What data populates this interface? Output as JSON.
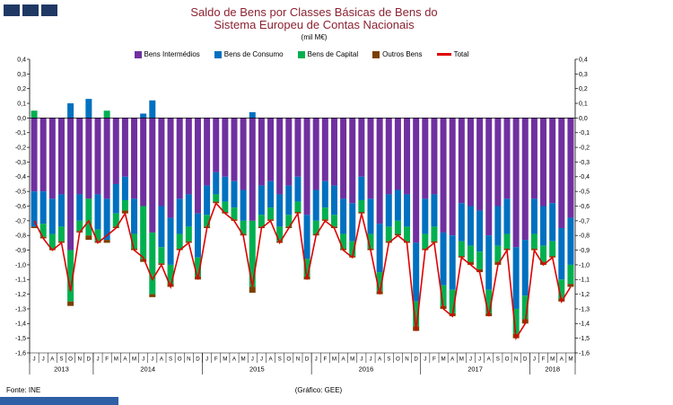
{
  "header": {
    "title_line1": "Saldo de Bens por Classes Básicas de Bens do",
    "title_line2": "Sistema Europeu de Contas Nacionais",
    "subtitle": "(mil M€)"
  },
  "footer": {
    "source": "Fonte: INE",
    "credit": "(Gráfico: GEE)"
  },
  "colors": {
    "title": "#8B2232",
    "deco_squares": "#1F3864",
    "bottom_bar": "#2F5FA5",
    "axis_text": "#000000",
    "background": "#FFFFFF"
  },
  "chart_data": {
    "type": "bar",
    "stacked": true,
    "title": "Saldo de Bens por Classes Básicas de Bens do Sistema Europeu de Contas Nacionais",
    "subtitle": "(mil M€)",
    "unit": "mil M€",
    "ylim": [
      -1.6,
      0.4
    ],
    "ytick_step": 0.1,
    "decimal_style": "comma",
    "grid": false,
    "legend_position": "top",
    "legend": [
      {
        "label": "Bens Intermédios",
        "color": "#7030A0",
        "type": "square"
      },
      {
        "label": "Bens de Consumo",
        "color": "#0070C0",
        "type": "square"
      },
      {
        "label": "Bens de Capital",
        "color": "#00B050",
        "type": "square"
      },
      {
        "label": "Outros Bens",
        "color": "#7B3F00",
        "type": "square"
      },
      {
        "label": "Total",
        "color": "#E00000",
        "type": "line"
      }
    ],
    "months": [
      "J",
      "J",
      "A",
      "S",
      "O",
      "N",
      "D",
      "J",
      "F",
      "M",
      "A",
      "M",
      "J",
      "J",
      "A",
      "S",
      "O",
      "N",
      "D",
      "J",
      "F",
      "M",
      "A",
      "M",
      "J",
      "J",
      "A",
      "S",
      "O",
      "N",
      "D",
      "J",
      "F",
      "M",
      "A",
      "M",
      "J",
      "J",
      "A",
      "S",
      "O",
      "N",
      "D",
      "J",
      "F",
      "M",
      "A",
      "M",
      "J",
      "J",
      "A",
      "S",
      "O",
      "N",
      "D",
      "J",
      "F",
      "M",
      "A",
      "M"
    ],
    "years": [
      {
        "label": "2013",
        "months": 7
      },
      {
        "label": "2014",
        "months": 12
      },
      {
        "label": "2015",
        "months": 12
      },
      {
        "label": "2016",
        "months": 12
      },
      {
        "label": "2017",
        "months": 12
      },
      {
        "label": "2018",
        "months": 5
      }
    ],
    "series": [
      {
        "name": "Bens Intermédios",
        "color": "#7030A0",
        "values": [
          -0.5,
          -0.5,
          -0.55,
          -0.52,
          -0.9,
          -0.52,
          -0.55,
          -0.52,
          -0.55,
          -0.45,
          -0.4,
          -0.55,
          -0.6,
          -0.78,
          -0.6,
          -0.68,
          -0.55,
          -0.52,
          -0.65,
          -0.46,
          -0.37,
          -0.4,
          -0.43,
          -0.49,
          -0.7,
          -0.46,
          -0.43,
          -0.52,
          -0.46,
          -0.4,
          -0.66,
          -0.49,
          -0.43,
          -0.46,
          -0.55,
          -0.58,
          -0.4,
          -0.55,
          -0.72,
          -0.52,
          -0.49,
          -0.52,
          -0.85,
          -0.55,
          -0.52,
          -0.78,
          -0.8,
          -0.58,
          -0.6,
          -0.63,
          -0.8,
          -0.6,
          -0.55,
          -0.88,
          -0.83,
          -0.55,
          -0.6,
          -0.58,
          -0.75,
          -0.68
        ]
      },
      {
        "name": "Bens de Consumo",
        "color": "#0070C0",
        "values": [
          -0.24,
          -0.22,
          -0.24,
          -0.22,
          0.1,
          -0.18,
          0.13,
          -0.24,
          -0.28,
          -0.2,
          -0.16,
          -0.24,
          0.03,
          0.12,
          -0.28,
          -0.32,
          -0.24,
          -0.22,
          -0.3,
          -0.2,
          -0.15,
          -0.17,
          -0.18,
          -0.21,
          0.04,
          -0.2,
          -0.18,
          -0.22,
          -0.2,
          -0.17,
          -0.3,
          -0.21,
          -0.18,
          -0.2,
          -0.24,
          -0.26,
          -0.16,
          -0.24,
          -0.33,
          -0.22,
          -0.21,
          -0.22,
          -0.4,
          -0.24,
          -0.22,
          -0.36,
          -0.37,
          -0.26,
          -0.27,
          -0.28,
          -0.37,
          -0.27,
          -0.24,
          -0.42,
          -0.38,
          -0.24,
          -0.27,
          -0.26,
          -0.35,
          -0.32
        ]
      },
      {
        "name": "Bens de Capital",
        "color": "#00B050",
        "values": [
          0.05,
          -0.09,
          -0.1,
          -0.1,
          -0.35,
          -0.07,
          -0.25,
          -0.08,
          0.05,
          -0.09,
          -0.07,
          -0.1,
          -0.36,
          -0.42,
          -0.11,
          -0.13,
          -0.1,
          -0.1,
          -0.13,
          -0.08,
          -0.05,
          -0.07,
          -0.08,
          -0.09,
          -0.45,
          -0.08,
          -0.08,
          -0.1,
          -0.08,
          -0.07,
          -0.12,
          -0.09,
          -0.08,
          -0.08,
          -0.1,
          -0.1,
          -0.08,
          -0.1,
          -0.13,
          -0.1,
          -0.09,
          -0.1,
          -0.17,
          -0.1,
          -0.1,
          -0.14,
          -0.16,
          -0.1,
          -0.11,
          -0.12,
          -0.16,
          -0.11,
          -0.1,
          -0.17,
          -0.16,
          -0.1,
          -0.11,
          -0.1,
          -0.13,
          -0.13
        ]
      },
      {
        "name": "Outros Bens",
        "color": "#7B3F00",
        "values": [
          -0.01,
          -0.01,
          -0.01,
          -0.01,
          -0.03,
          -0.01,
          -0.03,
          -0.01,
          -0.02,
          -0.01,
          -0.02,
          -0.01,
          -0.02,
          -0.02,
          -0.01,
          -0.02,
          -0.01,
          -0.01,
          -0.02,
          -0.01,
          -0.01,
          -0.01,
          -0.01,
          -0.01,
          -0.04,
          -0.01,
          -0.01,
          -0.01,
          -0.01,
          -0.01,
          -0.02,
          -0.01,
          -0.01,
          -0.01,
          -0.01,
          -0.01,
          -0.01,
          -0.01,
          -0.02,
          -0.01,
          -0.01,
          -0.01,
          -0.03,
          -0.01,
          -0.01,
          -0.02,
          -0.02,
          -0.01,
          -0.02,
          -0.02,
          -0.02,
          -0.02,
          -0.01,
          -0.03,
          -0.03,
          -0.01,
          -0.02,
          -0.01,
          -0.02,
          -0.02
        ]
      }
    ],
    "total_line": {
      "name": "Total",
      "color": "#E00000",
      "values": [
        -0.7,
        -0.82,
        -0.9,
        -0.85,
        -1.18,
        -0.78,
        -0.7,
        -0.85,
        -0.8,
        -0.75,
        -0.65,
        -0.9,
        -0.95,
        -1.1,
        -1.0,
        -1.15,
        -0.9,
        -0.85,
        -1.1,
        -0.75,
        -0.58,
        -0.65,
        -0.7,
        -0.8,
        -1.15,
        -0.75,
        -0.7,
        -0.85,
        -0.75,
        -0.65,
        -1.1,
        -0.8,
        -0.7,
        -0.75,
        -0.9,
        -0.95,
        -0.65,
        -0.9,
        -1.2,
        -0.85,
        -0.8,
        -0.85,
        -1.45,
        -0.9,
        -0.85,
        -1.3,
        -1.35,
        -0.95,
        -1.0,
        -1.05,
        -1.35,
        -1.0,
        -0.9,
        -1.5,
        -1.4,
        -0.9,
        -1.0,
        -0.95,
        -1.25,
        -1.15
      ]
    }
  }
}
